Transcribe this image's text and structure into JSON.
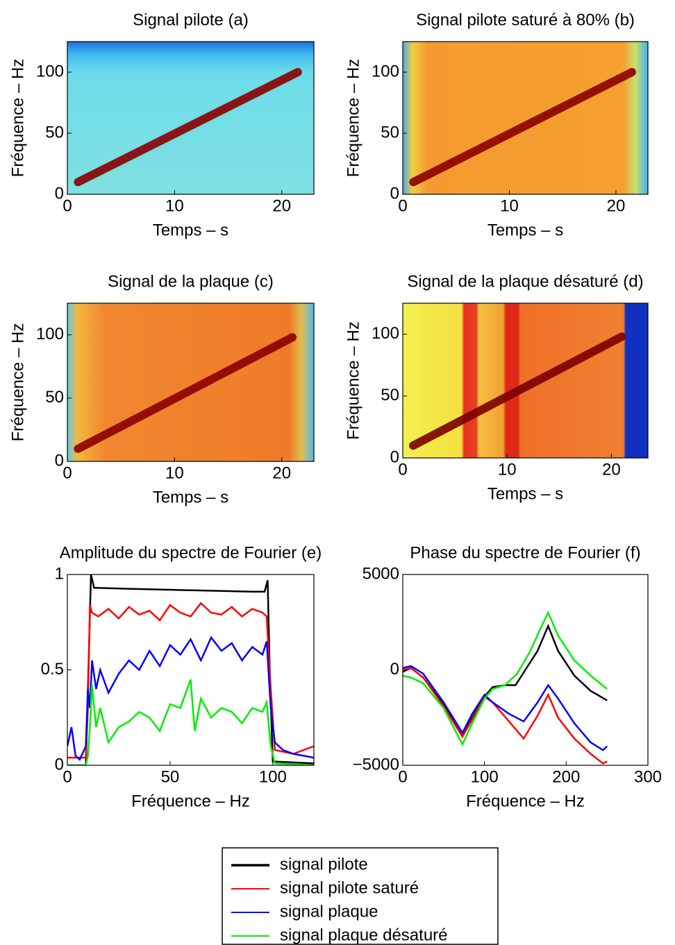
{
  "chart_data": [
    {
      "type": "spectrogram",
      "title": "Signal pilote (a)",
      "xlabel": "Temps – s",
      "ylabel": "Fréquence – Hz",
      "xlim": [
        0,
        23
      ],
      "ylim": [
        0,
        125
      ],
      "xticks": [
        0,
        10,
        20
      ],
      "yticks": [
        0,
        50,
        100
      ],
      "x": [
        1,
        21.5
      ],
      "values": [
        10,
        100
      ],
      "color": "#8b0000"
    },
    {
      "type": "spectrogram",
      "title": "Signal pilote saturé à 80% (b)",
      "xlabel": "Temps – s",
      "ylabel": "Fréquence – Hz",
      "xlim": [
        0,
        23
      ],
      "ylim": [
        0,
        125
      ],
      "xticks": [
        0,
        10,
        20
      ],
      "yticks": [
        0,
        50,
        100
      ],
      "x": [
        1,
        21.5
      ],
      "values": [
        10,
        100
      ],
      "color": "#8b0000"
    },
    {
      "type": "spectrogram",
      "title": "Signal de la plaque (c)",
      "xlabel": "Temps – s",
      "ylabel": "Fréquence – Hz",
      "xlim": [
        0,
        23
      ],
      "ylim": [
        0,
        125
      ],
      "xticks": [
        0,
        10,
        20
      ],
      "yticks": [
        0,
        50,
        100
      ],
      "x": [
        1,
        21
      ],
      "values": [
        10,
        98
      ],
      "color": "#8b0000"
    },
    {
      "type": "spectrogram",
      "title": "Signal de la plaque désaturé (d)",
      "xlabel": "Temps – s",
      "ylabel": "Fréquence – Hz",
      "xlim": [
        0,
        23.5
      ],
      "ylim": [
        0,
        125
      ],
      "xticks": [
        0,
        10,
        20
      ],
      "yticks": [
        0,
        50,
        100
      ],
      "x": [
        1,
        21
      ],
      "values": [
        10,
        98
      ],
      "color": "#7a0000"
    },
    {
      "type": "line",
      "title": "Amplitude du spectre de Fourier (e)",
      "xlabel": "Fréquence – Hz",
      "xlim": [
        0,
        120
      ],
      "ylim": [
        0,
        1
      ],
      "xticks": [
        0,
        50,
        100
      ],
      "yticks": [
        0,
        0.5,
        1
      ],
      "series": [
        {
          "name": "signal pilote",
          "color": "#000000",
          "x": [
            0,
            9,
            10.5,
            11.5,
            13,
            14,
            30,
            50,
            70,
            90,
            96,
            97.5,
            98.5,
            100,
            120
          ],
          "values": [
            0,
            0,
            0.6,
            1,
            0.93,
            0.93,
            0.925,
            0.92,
            0.915,
            0.91,
            0.91,
            0.97,
            0.5,
            0.02,
            0.01
          ]
        },
        {
          "name": "signal pilote saturé",
          "color": "#ff0000",
          "x": [
            0,
            9,
            10,
            11,
            12,
            15,
            20,
            25,
            30,
            35,
            40,
            45,
            50,
            55,
            60,
            65,
            70,
            75,
            80,
            85,
            90,
            95,
            97,
            99,
            101,
            110,
            120
          ],
          "values": [
            0.04,
            0.04,
            0.3,
            0.84,
            0.8,
            0.78,
            0.82,
            0.77,
            0.83,
            0.79,
            0.81,
            0.76,
            0.84,
            0.8,
            0.78,
            0.85,
            0.8,
            0.79,
            0.83,
            0.78,
            0.82,
            0.8,
            0.78,
            0.4,
            0.08,
            0.06,
            0.1
          ]
        },
        {
          "name": "signal plaque",
          "color": "#0000ff",
          "x": [
            0,
            2,
            4,
            6,
            9,
            10,
            11,
            12,
            14,
            16,
            20,
            25,
            30,
            35,
            40,
            45,
            50,
            55,
            60,
            65,
            70,
            75,
            80,
            85,
            90,
            95,
            97,
            99,
            101,
            105,
            110,
            120
          ],
          "values": [
            0.1,
            0.2,
            0.05,
            0.03,
            0.1,
            0.4,
            0.3,
            0.55,
            0.4,
            0.5,
            0.38,
            0.48,
            0.55,
            0.5,
            0.6,
            0.52,
            0.63,
            0.58,
            0.66,
            0.55,
            0.67,
            0.6,
            0.64,
            0.55,
            0.62,
            0.58,
            0.65,
            0.3,
            0.12,
            0.08,
            0.06,
            0.04
          ]
        },
        {
          "name": "signal plaque désaturé",
          "color": "#00ee00",
          "x": [
            0,
            9,
            10,
            11,
            12,
            14,
            16,
            20,
            25,
            30,
            35,
            40,
            45,
            50,
            55,
            60,
            62,
            65,
            70,
            75,
            80,
            85,
            90,
            95,
            97,
            99,
            101,
            120
          ],
          "values": [
            0,
            0,
            0.05,
            0.2,
            0.42,
            0.2,
            0.3,
            0.12,
            0.2,
            0.23,
            0.28,
            0.25,
            0.18,
            0.32,
            0.3,
            0.45,
            0.18,
            0.35,
            0.25,
            0.3,
            0.28,
            0.22,
            0.3,
            0.28,
            0.33,
            0.1,
            0.01,
            0
          ]
        }
      ]
    },
    {
      "type": "line",
      "title": "Phase du spectre de Fourier (f)",
      "xlabel": "Fréquence – Hz",
      "xlim": [
        0,
        300
      ],
      "ylim": [
        -5000,
        5000
      ],
      "xticks": [
        0,
        100,
        200,
        300
      ],
      "yticks": [
        {
          "value": -5000,
          "label": "−5000"
        },
        0,
        5000
      ],
      "series": [
        {
          "color": "#000000",
          "x": [
            0,
            10,
            25,
            50,
            73,
            85,
            100,
            110,
            125,
            138,
            150,
            165,
            178,
            190,
            210,
            230,
            250
          ],
          "values": [
            -100,
            100,
            -400,
            -1800,
            -3500,
            -2500,
            -1400,
            -900,
            -800,
            -800,
            0,
            1000,
            2300,
            1000,
            -300,
            -1100,
            -1600
          ]
        },
        {
          "color": "#ff0000",
          "x": [
            0,
            10,
            25,
            50,
            73,
            85,
            100,
            110,
            130,
            148,
            165,
            178,
            190,
            210,
            230,
            245,
            250
          ],
          "values": [
            0,
            100,
            -400,
            -1900,
            -3500,
            -2600,
            -1400,
            -1700,
            -2700,
            -3600,
            -2400,
            -1300,
            -2500,
            -3600,
            -4400,
            -4900,
            -4800
          ]
        },
        {
          "color": "#0000ff",
          "x": [
            0,
            10,
            25,
            50,
            73,
            85,
            100,
            110,
            130,
            148,
            165,
            178,
            190,
            210,
            230,
            245,
            250
          ],
          "values": [
            100,
            200,
            -200,
            -1700,
            -3300,
            -2300,
            -1300,
            -1700,
            -2300,
            -2700,
            -1700,
            -800,
            -1500,
            -2800,
            -3800,
            -4200,
            -4000
          ]
        },
        {
          "color": "#00ee00",
          "x": [
            0,
            10,
            25,
            50,
            73,
            85,
            100,
            110,
            125,
            140,
            155,
            170,
            178,
            190,
            210,
            230,
            250
          ],
          "values": [
            -300,
            -400,
            -700,
            -2000,
            -3900,
            -2800,
            -1500,
            -1000,
            -800,
            -200,
            900,
            2300,
            3000,
            1800,
            500,
            -300,
            -1000
          ]
        }
      ]
    }
  ]
}
